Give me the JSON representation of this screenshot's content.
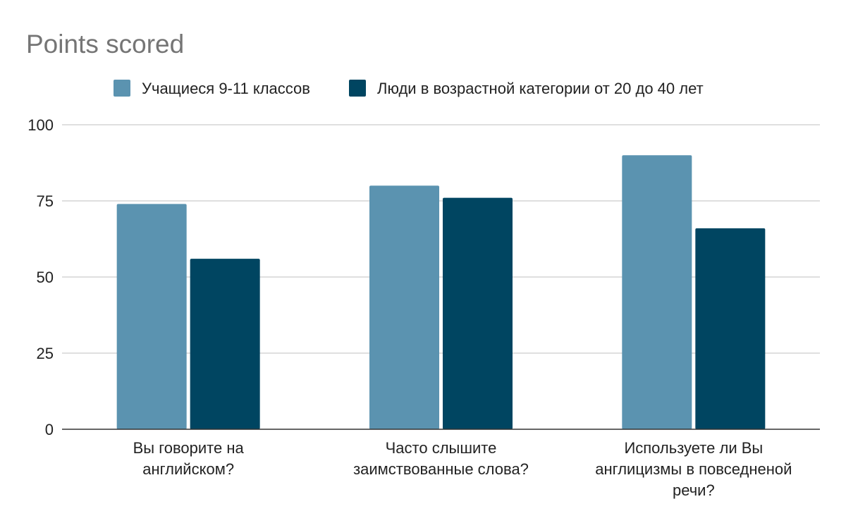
{
  "chart_data": {
    "type": "bar",
    "title": "Points scored",
    "categories": [
      [
        "Вы говорите на",
        "английском?"
      ],
      [
        "Часто слышите",
        "заимствованные слова?"
      ],
      [
        "Используете ли Вы",
        "англицизмы в повседненой",
        "речи?"
      ]
    ],
    "series": [
      {
        "name": "Учащиеся 9-11 классов",
        "color": "#5b93b0",
        "values": [
          74,
          80,
          90
        ]
      },
      {
        "name": "Люди в возрастной категории от 20 до 40 лет",
        "color": "#004561",
        "values": [
          56,
          76,
          66
        ]
      }
    ],
    "ylim": [
      0,
      100
    ],
    "yticks": [
      0,
      25,
      50,
      75,
      100
    ],
    "grid": true,
    "legend_position": "top",
    "xlabel": "",
    "ylabel": ""
  }
}
